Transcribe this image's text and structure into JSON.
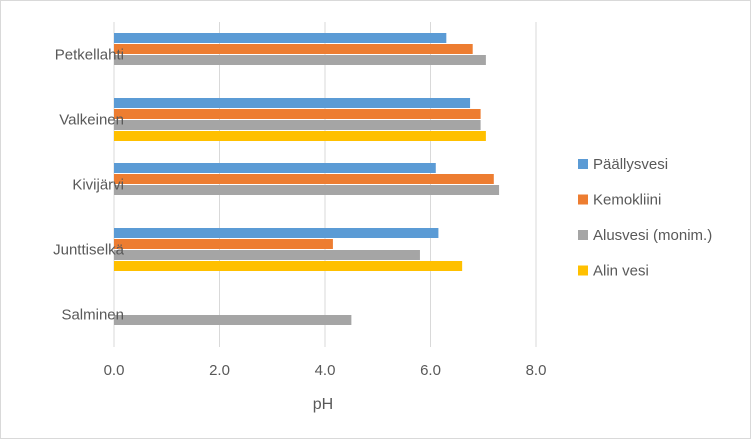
{
  "chart_data": {
    "type": "bar",
    "orientation": "horizontal",
    "categories": [
      "Petkellahti",
      "Valkeinen",
      "Kivijärvi",
      "Junttiselkä",
      "Salminen"
    ],
    "xlabel": "pH",
    "xlim": [
      0,
      8.0
    ],
    "xticks": [
      "0.0",
      "2.0",
      "4.0",
      "6.0",
      "8.0"
    ],
    "grid": true,
    "legend_position": "right",
    "series": [
      {
        "name": "Päällysvesi",
        "color": "#5b9bd5",
        "values": [
          6.3,
          6.75,
          6.1,
          6.15,
          null
        ]
      },
      {
        "name": "Kemokliini",
        "color": "#ed7d31",
        "values": [
          6.8,
          6.95,
          7.2,
          4.15,
          null
        ]
      },
      {
        "name": "Alusvesi (monim.)",
        "color": "#a5a5a5",
        "values": [
          7.05,
          6.95,
          7.3,
          5.8,
          4.5
        ]
      },
      {
        "name": "Alin vesi",
        "color": "#ffc000",
        "values": [
          null,
          7.05,
          null,
          6.6,
          null
        ]
      }
    ]
  }
}
